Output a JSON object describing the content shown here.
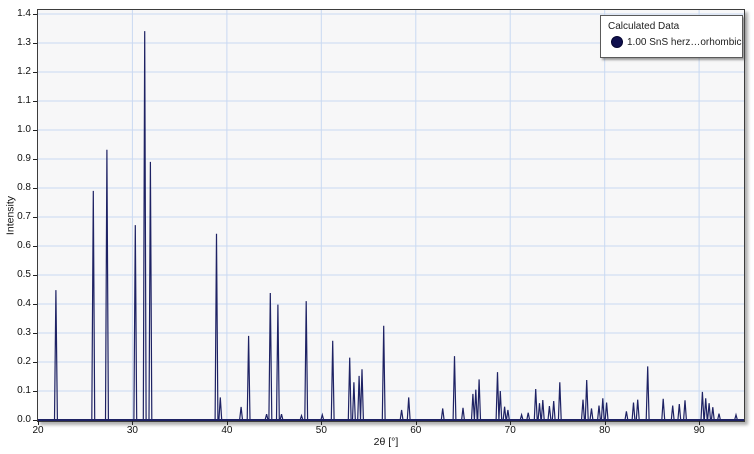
{
  "colors": {
    "page_bg": "#ffffff",
    "plot_bg": "#f7f7f8",
    "plot_border": "#3c3c3c",
    "grid": "#c9d9f2",
    "trace": "#1e2264",
    "tick": "#222222",
    "legend_marker": "#10104e"
  },
  "chart_data": {
    "type": "line",
    "variant": "xrd-powder-pattern",
    "title": "",
    "xlabel": "2θ [°]",
    "ylabel": "Intensity",
    "xlim": [
      20,
      94.75
    ],
    "ylim": [
      0,
      1.4
    ],
    "x_ticks": [
      20,
      30,
      40,
      50,
      60,
      70,
      80,
      90
    ],
    "y_ticks": [
      0.0,
      0.1,
      0.2,
      0.3,
      0.4,
      0.5,
      0.6,
      0.7,
      0.8,
      0.9,
      1.0,
      1.1,
      1.2,
      1.3,
      1.4
    ],
    "grid": true,
    "legend": {
      "title": "Calculated Data",
      "position": "top-right",
      "entries": [
        {
          "label": "1.00 SnS herz…orhombic",
          "marker": "circle-icon",
          "marker_color": "#10104e"
        }
      ]
    },
    "series": [
      {
        "name": "1.00 SnS herz…orhombic",
        "color": "#1e2264",
        "peak_halfwidth_deg": 0.15,
        "peaks": [
          [
            21.9,
            0.448
          ],
          [
            25.85,
            0.79
          ],
          [
            27.3,
            0.932
          ],
          [
            30.3,
            0.672
          ],
          [
            31.3,
            1.341
          ],
          [
            31.9,
            0.89
          ],
          [
            38.9,
            0.642
          ],
          [
            39.3,
            0.078
          ],
          [
            41.5,
            0.045
          ],
          [
            42.3,
            0.29
          ],
          [
            44.2,
            0.02
          ],
          [
            44.6,
            0.438
          ],
          [
            45.4,
            0.398
          ],
          [
            45.78,
            0.02
          ],
          [
            47.9,
            0.015
          ],
          [
            48.4,
            0.41
          ],
          [
            50.1,
            0.018
          ],
          [
            51.2,
            0.273
          ],
          [
            53.0,
            0.215
          ],
          [
            53.45,
            0.13
          ],
          [
            54.0,
            0.152
          ],
          [
            54.3,
            0.175
          ],
          [
            56.6,
            0.325
          ],
          [
            58.5,
            0.035
          ],
          [
            59.25,
            0.078
          ],
          [
            62.85,
            0.04
          ],
          [
            64.1,
            0.22
          ],
          [
            65.0,
            0.042
          ],
          [
            66.05,
            0.09
          ],
          [
            66.35,
            0.105
          ],
          [
            66.7,
            0.14
          ],
          [
            68.65,
            0.165
          ],
          [
            68.95,
            0.1
          ],
          [
            69.4,
            0.046
          ],
          [
            69.75,
            0.035
          ],
          [
            71.2,
            0.018
          ],
          [
            71.9,
            0.025
          ],
          [
            72.7,
            0.107
          ],
          [
            73.1,
            0.058
          ],
          [
            73.45,
            0.069
          ],
          [
            74.15,
            0.048
          ],
          [
            74.6,
            0.065
          ],
          [
            75.25,
            0.13
          ],
          [
            77.7,
            0.07
          ],
          [
            78.1,
            0.138
          ],
          [
            78.6,
            0.04
          ],
          [
            79.4,
            0.05
          ],
          [
            79.8,
            0.075
          ],
          [
            80.2,
            0.06
          ],
          [
            82.3,
            0.03
          ],
          [
            83.05,
            0.06
          ],
          [
            83.5,
            0.07
          ],
          [
            84.55,
            0.185
          ],
          [
            86.2,
            0.073
          ],
          [
            87.2,
            0.05
          ],
          [
            87.9,
            0.055
          ],
          [
            88.5,
            0.068
          ],
          [
            90.35,
            0.097
          ],
          [
            90.7,
            0.075
          ],
          [
            91.05,
            0.058
          ],
          [
            91.45,
            0.044
          ],
          [
            92.1,
            0.022
          ],
          [
            93.9,
            0.018
          ]
        ]
      }
    ]
  }
}
